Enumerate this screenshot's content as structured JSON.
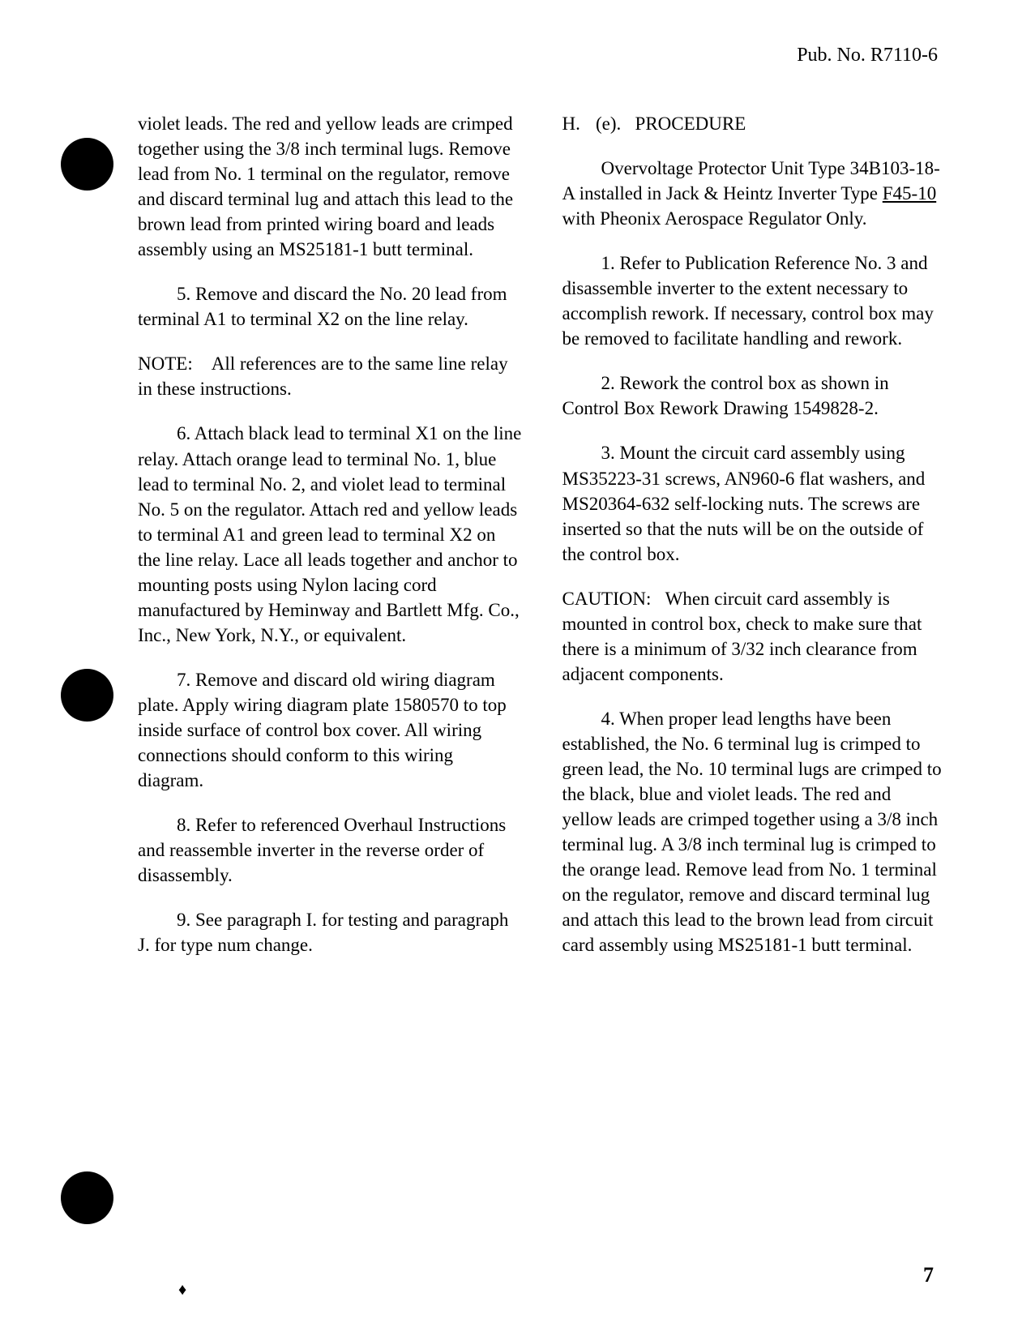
{
  "header": {
    "pub_number": "Pub. No. R7110-6"
  },
  "left_column": {
    "p1": "violet leads. The red and yellow leads are crimped together using the 3/8 inch terminal lugs. Remove lead from No. 1 terminal on the regulator, remove and discard terminal lug and attach this lead to the brown lead from printed wiring board and leads assembly using an MS25181-1 butt terminal.",
    "p2": "5. Remove and discard the No. 20 lead from terminal A1 to terminal X2 on the line relay.",
    "p3_label": "NOTE:",
    "p3_text": "All references are to the same line relay in these instructions.",
    "p4": "6. Attach black lead to terminal X1 on the line relay. Attach orange lead to terminal No. 1, blue lead to terminal No. 2, and violet lead to terminal No. 5 on the regulator. Attach red and yellow leads to terminal A1 and green lead to terminal X2 on the line relay. Lace all leads together and anchor to mounting posts using Nylon lacing cord manufactured by Heminway and Bartlett Mfg. Co., Inc., New York, N.Y., or equivalent.",
    "p5": "7. Remove and discard old wiring diagram plate. Apply wiring diagram plate 1580570 to top inside surface of control box cover. All wiring connections should conform to this wiring diagram.",
    "p6": "8. Refer to referenced Overhaul Instructions and reassemble inverter in the reverse order of disassembly.",
    "p7": "9. See paragraph I. for testing and paragraph J. for type num change."
  },
  "right_column": {
    "heading_h": "H.",
    "heading_e": "(e).",
    "heading_title": "PROCEDURE",
    "p1_a": "Overvoltage Protector Unit Type 34B103-18-A installed in Jack & Heintz Inverter Type ",
    "p1_u": "F45-10",
    "p1_b": " with Pheonix Aerospace Regulator Only.",
    "p2": "1. Refer to Publication Reference No. 3 and disassemble inverter to the extent necessary to accomplish rework. If necessary, control box may be removed to facilitate handling and rework.",
    "p3": "2. Rework the control box as shown in Control Box Rework Drawing 1549828-2.",
    "p4": "3. Mount the circuit card assembly using MS35223-31 screws, AN960-6 flat washers, and MS20364-632 self-locking nuts. The screws are inserted so that the nuts will be on the outside of the control box.",
    "p5_label": "CAUTION:",
    "p5_text": "When circuit card assembly is mounted in control box, check to make sure that there is a minimum of 3/32 inch clearance from adjacent components.",
    "p6": "4. When proper lead lengths have been established, the No. 6 terminal lug is crimped to green lead, the No. 10 terminal lugs are crimped to the black, blue and violet leads. The red and yellow leads are crimped together using a 3/8 inch terminal lug. A 3/8 inch terminal lug is crimped to the orange lead. Remove lead from No. 1 terminal on the regulator, remove and discard terminal lug and attach this lead to the brown lead from circuit card assembly using MS25181-1 butt terminal."
  },
  "footer": {
    "page_number": "7",
    "small_mark": "♦"
  }
}
